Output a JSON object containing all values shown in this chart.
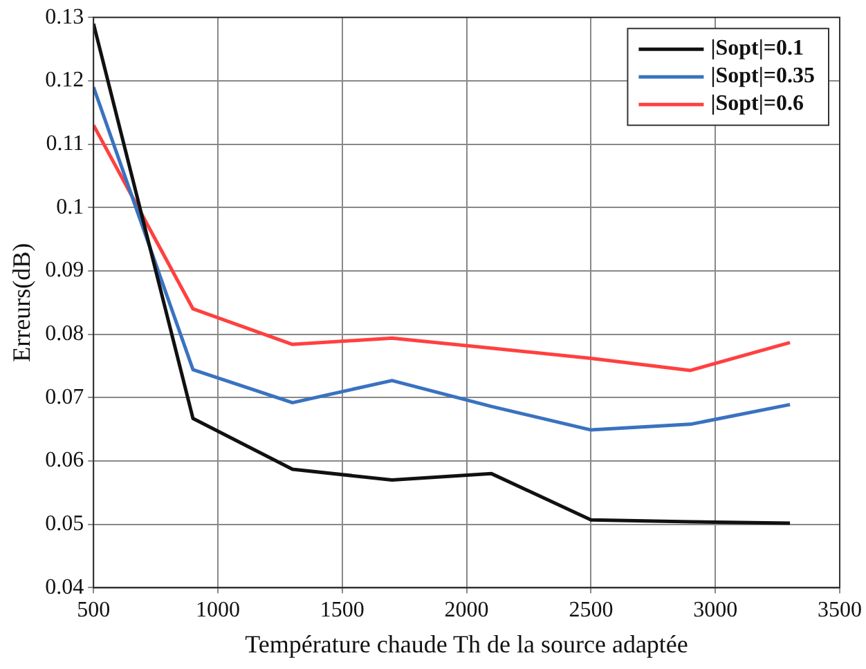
{
  "chart_data": {
    "type": "line",
    "xlabel": "Température chaude Th de la source adaptée",
    "ylabel": "Erreurs(dB)",
    "x": [
      500,
      900,
      1300,
      1700,
      2100,
      2500,
      2900,
      3300
    ],
    "series": [
      {
        "name": "|Sopt|=0.1",
        "color": "#111111",
        "values": [
          0.129,
          0.0667,
          0.0587,
          0.057,
          0.058,
          0.0507,
          0.0504,
          0.0502
        ]
      },
      {
        "name": "|Sopt|=0.35",
        "color": "#3a72c0",
        "values": [
          0.119,
          0.0744,
          0.0692,
          0.0727,
          0.0686,
          0.0649,
          0.0658,
          0.0689
        ]
      },
      {
        "name": "|Sopt|=0.6",
        "color": "#ff4040",
        "values": [
          0.113,
          0.084,
          0.0784,
          0.0794,
          0.0778,
          0.0762,
          0.0743,
          0.0787
        ]
      }
    ],
    "xlim": [
      500,
      3500
    ],
    "xticks": [
      500,
      1000,
      1500,
      2000,
      2500,
      3000,
      3500
    ],
    "ylim": [
      0.04,
      0.13
    ],
    "yticks": [
      0.04,
      0.05,
      0.06,
      0.07,
      0.08,
      0.09,
      0.1,
      0.11,
      0.12,
      0.13
    ],
    "grid": true,
    "legend": "top right",
    "marker": "none",
    "line_style": "solid"
  }
}
